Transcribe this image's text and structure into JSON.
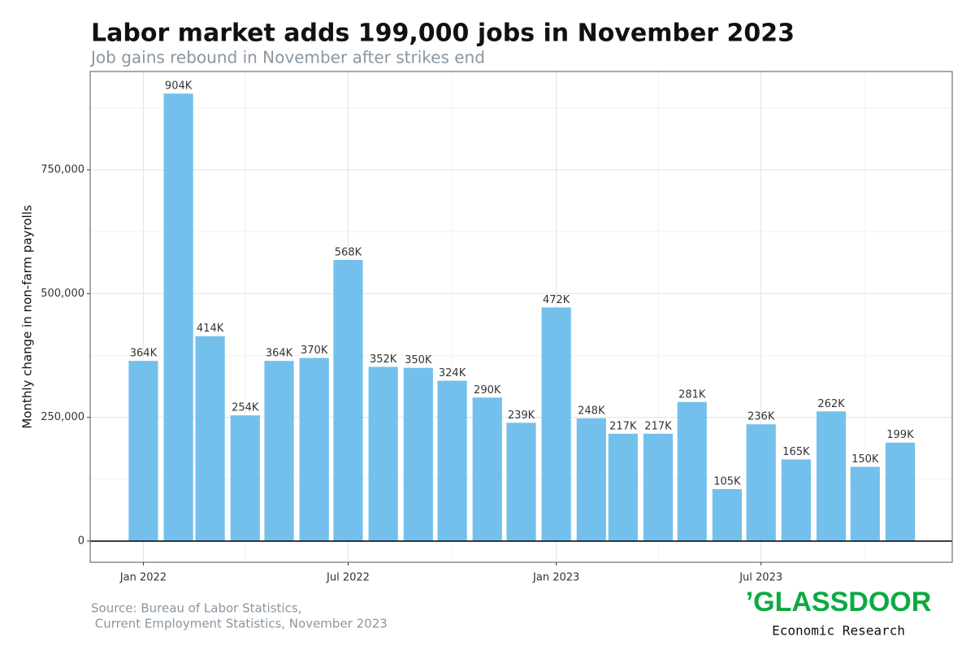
{
  "chart_data": {
    "type": "bar",
    "title": "Labor market adds 199,000 jobs in November 2023",
    "subtitle": "Job gains rebound in November after strikes end",
    "y_label": "Monthly change in non-farm payrolls",
    "x": [
      "2022-01",
      "2022-02",
      "2022-03",
      "2022-04",
      "2022-05",
      "2022-06",
      "2022-07",
      "2022-08",
      "2022-09",
      "2022-10",
      "2022-11",
      "2022-12",
      "2023-01",
      "2023-02",
      "2023-03",
      "2023-04",
      "2023-05",
      "2023-06",
      "2023-07",
      "2023-08",
      "2023-09",
      "2023-10",
      "2023-11"
    ],
    "values": [
      364000,
      904000,
      414000,
      254000,
      364000,
      370000,
      568000,
      352000,
      350000,
      324000,
      290000,
      239000,
      472000,
      248000,
      217000,
      217000,
      281000,
      105000,
      236000,
      165000,
      262000,
      150000,
      199000
    ],
    "value_labels": [
      "364K",
      "904K",
      "414K",
      "254K",
      "364K",
      "370K",
      "568K",
      "352K",
      "350K",
      "324K",
      "290K",
      "239K",
      "472K",
      "248K",
      "217K",
      "217K",
      "281K",
      "105K",
      "236K",
      "165K",
      "262K",
      "150K",
      "199K"
    ],
    "color": "#74c0ec",
    "xlim": [
      "2021-11-15",
      "2023-12-17"
    ],
    "xticks": [
      {
        "value": "2022-01",
        "label": "Jan 2022"
      },
      {
        "value": "2022-07",
        "label": "Jul 2022"
      },
      {
        "value": "2023-01",
        "label": "Jan 2023"
      },
      {
        "value": "2023-07",
        "label": "Jul 2023"
      }
    ],
    "xminorticks": [
      "2022-04",
      "2022-10",
      "2023-04",
      "2023-10"
    ],
    "ylim": [
      -42700,
      948600
    ],
    "yticks": [
      0,
      {
        "value": 250000,
        "label": "250,000"
      },
      {
        "value": 500000,
        "label": "500,000"
      },
      {
        "value": 750000,
        "label": "750,000"
      }
    ],
    "yminorticks": [
      125000,
      375000,
      625000,
      875000
    ],
    "grid": true,
    "source": [
      "Source: Bureau of Labor Statistics,",
      " Current Employment Statistics, November 2023"
    ],
    "logo": {
      "brand": "’GLASSDOOR",
      "tagline": "Economic Research"
    }
  }
}
